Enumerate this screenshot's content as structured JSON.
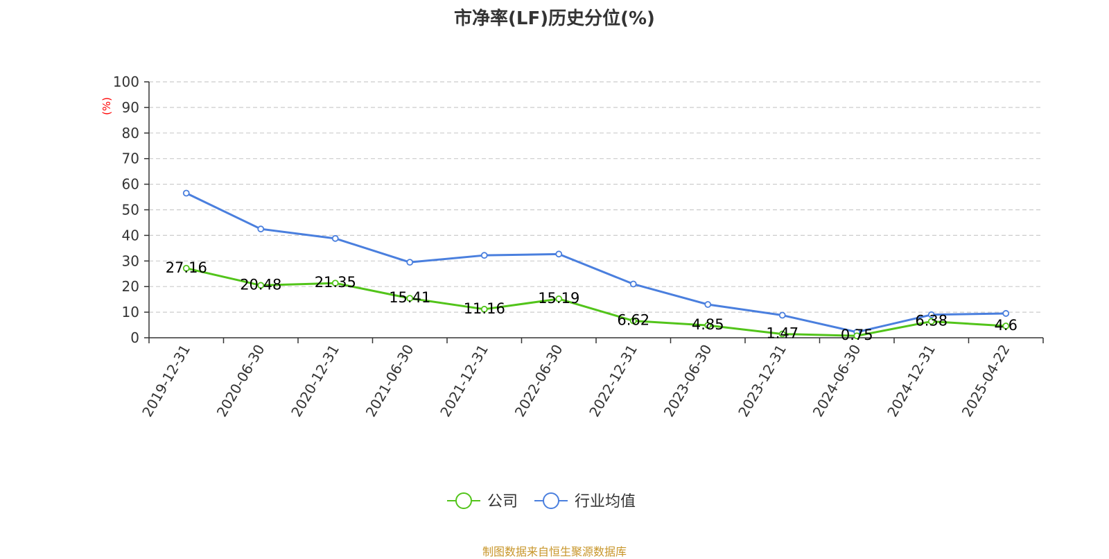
{
  "page_title": "市净率(LF)历史分位(%)",
  "footer_source": "制图数据来自恒生聚源数据库",
  "chart_data": {
    "type": "line",
    "title": "市净率(LF)历史分位(%)",
    "ylabel": "(%)",
    "xlabel": "",
    "ylim": [
      0,
      100
    ],
    "yticks": [
      0,
      10,
      20,
      30,
      40,
      50,
      60,
      70,
      80,
      90,
      100
    ],
    "grid": true,
    "legend_position": "bottom-center",
    "categories": [
      "2019-12-31",
      "2020-06-30",
      "2020-12-31",
      "2021-06-30",
      "2021-12-31",
      "2022-06-30",
      "2022-12-31",
      "2023-06-30",
      "2023-12-31",
      "2024-06-30",
      "2024-12-31",
      "2025-04-22"
    ],
    "series": [
      {
        "name": "公司",
        "color": "#52c41a",
        "values": [
          27.16,
          20.48,
          21.35,
          15.41,
          11.16,
          15.19,
          6.62,
          4.85,
          1.47,
          0.75,
          6.38,
          4.6
        ],
        "show_labels": true
      },
      {
        "name": "行业均值",
        "color": "#4a7fde",
        "values": [
          56.5,
          42.5,
          38.8,
          29.5,
          32.2,
          32.7,
          21.0,
          13.0,
          8.8,
          2.2,
          9.0,
          9.5
        ],
        "show_labels": false
      }
    ],
    "colors": {
      "axis": "#333333",
      "grid": "#cccccc",
      "ylabel": "#ff0000",
      "footer": "#c8962a"
    }
  }
}
